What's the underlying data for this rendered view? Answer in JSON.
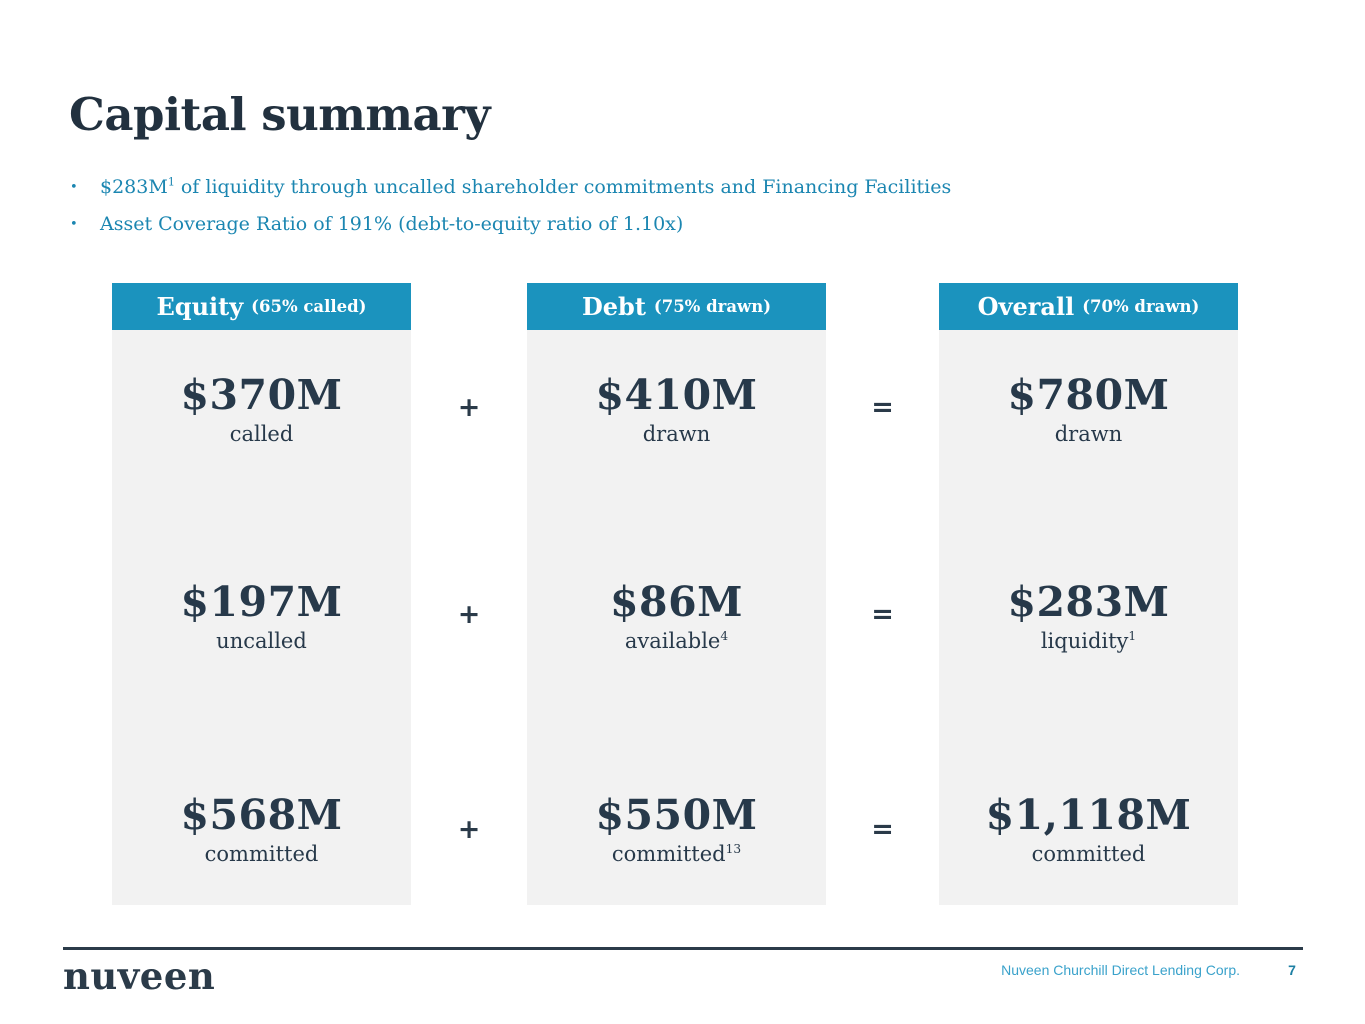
{
  "title": "Capital summary",
  "bullets": {
    "marker": "•",
    "b1_pre": "$283M",
    "b1_sup": "1",
    "b1_post": " of liquidity through uncalled shareholder commitments and Financing Facilities",
    "b2": "Asset Coverage Ratio of 191% (debt-to-equity ratio of 1.10x)"
  },
  "columns": [
    {
      "header_title": "Equity",
      "header_note": "(65% called)",
      "rows": [
        {
          "value": "$370M",
          "label": "called",
          "label_sup": ""
        },
        {
          "value": "$197M",
          "label": "uncalled",
          "label_sup": ""
        },
        {
          "value": "$568M",
          "label": "committed",
          "label_sup": ""
        }
      ]
    },
    {
      "header_title": "Debt",
      "header_note": "(75% drawn)",
      "rows": [
        {
          "value": "$410M",
          "label": "drawn",
          "label_sup": ""
        },
        {
          "value": "$86M",
          "label": "available",
          "label_sup": "4"
        },
        {
          "value": "$550M",
          "label": "committed",
          "label_sup": "13"
        }
      ]
    },
    {
      "header_title": "Overall",
      "header_note": "(70% drawn)",
      "rows": [
        {
          "value": "$780M",
          "label": "drawn",
          "label_sup": ""
        },
        {
          "value": "$283M",
          "label": "liquidity",
          "label_sup": "1"
        },
        {
          "value": "$1,118M",
          "label": "committed",
          "label_sup": ""
        }
      ]
    }
  ],
  "operators": {
    "plus": "+",
    "equals": "="
  },
  "footer": {
    "brand": "nuveen",
    "company": "Nuveen Churchill Direct Lending Corp.",
    "page": "7"
  },
  "colors": {
    "header_teal": "#1b93be",
    "bullet_teal": "#1b86b1",
    "navy_text": "#27394a",
    "column_body_gray": "#f2f2f2",
    "footer_company_teal": "#3aa2cb",
    "footer_page_teal": "#1d7fa3"
  }
}
